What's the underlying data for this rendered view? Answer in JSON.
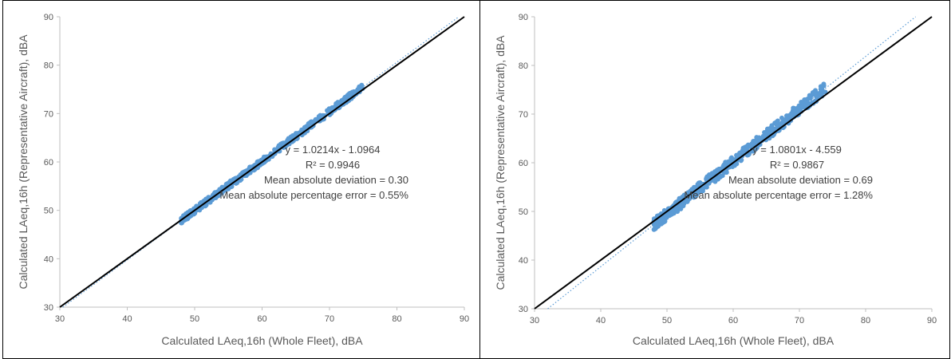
{
  "chart_data": [
    {
      "type": "scatter",
      "title": "",
      "xlabel": "Calculated LAeq,16h (Whole Fleet), dBA",
      "ylabel": "Calculated LAeq,16h (Representative Aircraft), dBA",
      "xlim": [
        30,
        90
      ],
      "ylim": [
        30,
        90
      ],
      "x_ticks": [
        "30",
        "40",
        "50",
        "60",
        "70",
        "80",
        "90"
      ],
      "y_ticks": [
        "30",
        "40",
        "50",
        "60",
        "70",
        "80",
        "90"
      ],
      "grid": false,
      "point_color": "#5b9bd5",
      "trendline_color": "#5b9bd5",
      "identity_line_color": "#000000",
      "scatter": {
        "x_range": [
          48,
          75
        ],
        "band_halfwidth": 0.7
      },
      "trendline": {
        "slope": 1.0214,
        "intercept": -1.0964
      },
      "identity_line": {
        "from": [
          30,
          30
        ],
        "to": [
          90,
          90
        ]
      },
      "annotations": [
        "y = 1.0214x - 1.0964",
        "R² = 0.9946",
        "Mean absolute deviation = 0.30",
        "Mean absolute percentage error = 0.55%"
      ]
    },
    {
      "type": "scatter",
      "title": "",
      "xlabel": "Calculated LAeq,16h (Whole Fleet), dBA",
      "ylabel": "Calculated LAeq,16h (Representative Aircraft), dBA",
      "xlim": [
        30,
        90
      ],
      "ylim": [
        30,
        90
      ],
      "x_ticks": [
        "30",
        "40",
        "50",
        "60",
        "70",
        "80",
        "90"
      ],
      "y_ticks": [
        "30",
        "40",
        "50",
        "60",
        "70",
        "80",
        "90"
      ],
      "grid": false,
      "point_color": "#5b9bd5",
      "trendline_color": "#5b9bd5",
      "identity_line_color": "#000000",
      "scatter": {
        "x_range": [
          48,
          74
        ],
        "band_halfwidth": 1.2
      },
      "trendline": {
        "slope": 1.0801,
        "intercept": -4.559
      },
      "identity_line": {
        "from": [
          30,
          30
        ],
        "to": [
          90,
          90
        ]
      },
      "annotations": [
        "y = 1.0801x - 4.559",
        "R² = 0.9867",
        "Mean absolute deviation = 0.69",
        "Mean absolute percentage error = 1.28%"
      ]
    }
  ]
}
